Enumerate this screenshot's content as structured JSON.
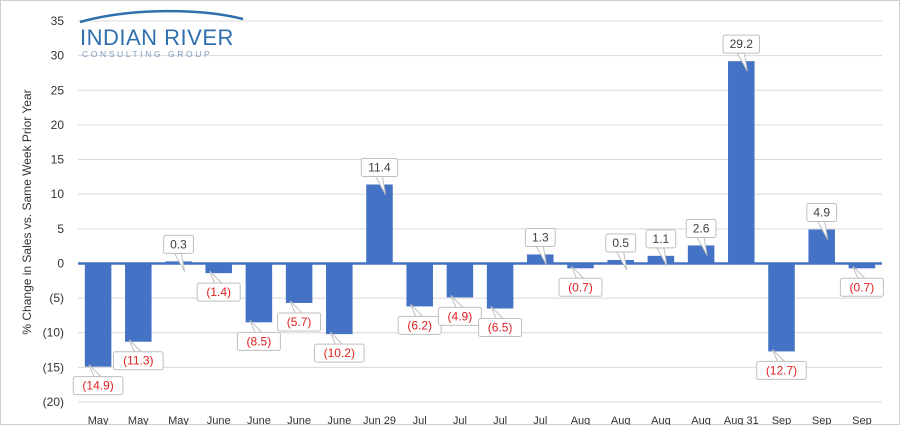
{
  "logo": {
    "name": "INDIAN RIVER",
    "sub": "CONSULTING GROUP",
    "color": "#2f6fae"
  },
  "chart_data": {
    "type": "bar",
    "ylabel": "% Change in Sales vs. Same Week Prior Year",
    "ylim": [
      -20,
      35
    ],
    "yticks": [
      35,
      30,
      25,
      20,
      15,
      10,
      5,
      0,
      -5,
      -10,
      -15,
      -20
    ],
    "ytick_labels": [
      "35",
      "30",
      "25",
      "20",
      "15",
      "10",
      "5",
      "0",
      "(5)",
      "(10)",
      "(15)",
      "(20)"
    ],
    "categories": [
      "May",
      "May",
      "May",
      "June",
      "June",
      "June",
      "June",
      "Jun 29",
      "Jul",
      "Jul",
      "Jul",
      "Jul",
      "Aug",
      "Aug",
      "Aug",
      "Aug",
      "Aug 31",
      "Sep",
      "Sep",
      "Sep"
    ],
    "values": [
      -14.9,
      -11.3,
      0.3,
      -1.4,
      -8.5,
      -5.7,
      -10.2,
      11.4,
      -6.2,
      -4.9,
      -6.5,
      1.3,
      -0.7,
      0.5,
      1.1,
      2.6,
      29.2,
      -12.7,
      4.9,
      -0.7
    ],
    "labels": [
      "(14.9)",
      "(11.3)",
      "0.3",
      "(1.4)",
      "(8.5)",
      "(5.7)",
      "(10.2)",
      "11.4",
      "(6.2)",
      "(4.9)",
      "(6.5)",
      "1.3",
      "(0.7)",
      "0.5",
      "1.1",
      "2.6",
      "29.2",
      "(12.7)",
      "4.9",
      "(0.7)"
    ],
    "bar_color": "#4472c4",
    "positive_label_color": "#404040",
    "negative_label_color": "#e02020",
    "grid": true,
    "grid_color": "#d9d9d9"
  }
}
